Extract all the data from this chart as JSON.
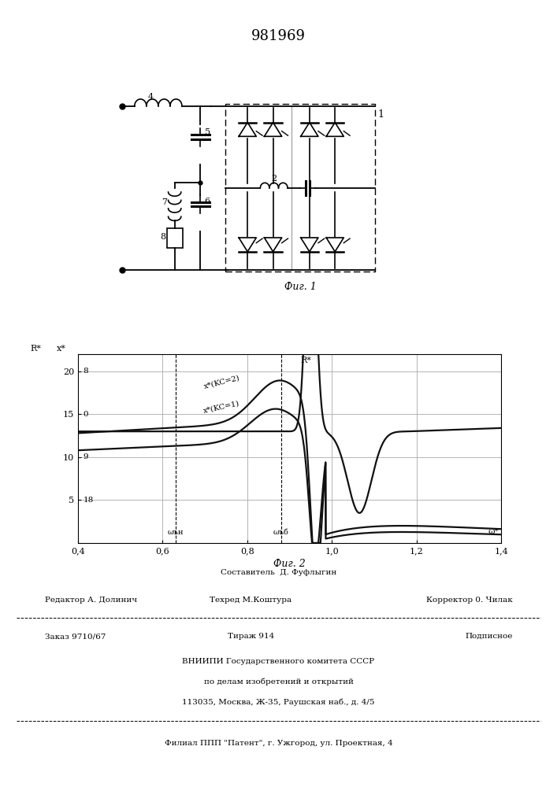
{
  "patent_number": "981969",
  "fig1_caption": "Фиг. 1",
  "fig2_caption": "Фиг. 2",
  "graph": {
    "xlim": [
      0.4,
      1.4
    ],
    "ylim": [
      0,
      22
    ],
    "xticks": [
      0.4,
      0.6,
      0.8,
      1.0,
      1.2,
      1.4
    ],
    "xtick_labels": [
      "0,4",
      "0,6",
      "0,8",
      "1,0",
      "1,2",
      "1,4"
    ],
    "yticks_left": [
      5,
      10,
      15,
      20
    ],
    "ytick_labels_left": [
      "5",
      "10",
      "15",
      "20"
    ],
    "secondary_y": {
      "20": "8",
      "15": "0",
      "10": "9",
      "5": "18"
    },
    "ylabel_left": "R*",
    "ylabel_right": "x*",
    "vlines": [
      0.63,
      0.88
    ],
    "vline_labels": [
      "ωън",
      "ωъб"
    ],
    "label_R": "R*",
    "label_X2": "x*(KC=2)",
    "label_X1": "x*(KC=1)",
    "omega_label": "ω*",
    "grid_color": "#aaaaaa",
    "line_color": "#111111"
  },
  "footer": {
    "line1_center": "Составитель  Д. Фуфлыгин",
    "line2_left": "Редактор А. Долинич",
    "line2_center": "Техред М.Коштура",
    "line2_right": "Корректор 0. Чилак",
    "line3_left": "Заказ 9710/67",
    "line3_center": "Тираж 914",
    "line3_right": "Подписное",
    "line4": "ВНИИПИ Государственного комитета СССР",
    "line5": "по делам изобретений и открытий",
    "line6": "113035, Москва, Ж-35, Раушская наб., д. 4/5",
    "line7": "Филиал ППП \"Патент\", г. Ужгород, ул. Проектная, 4"
  }
}
